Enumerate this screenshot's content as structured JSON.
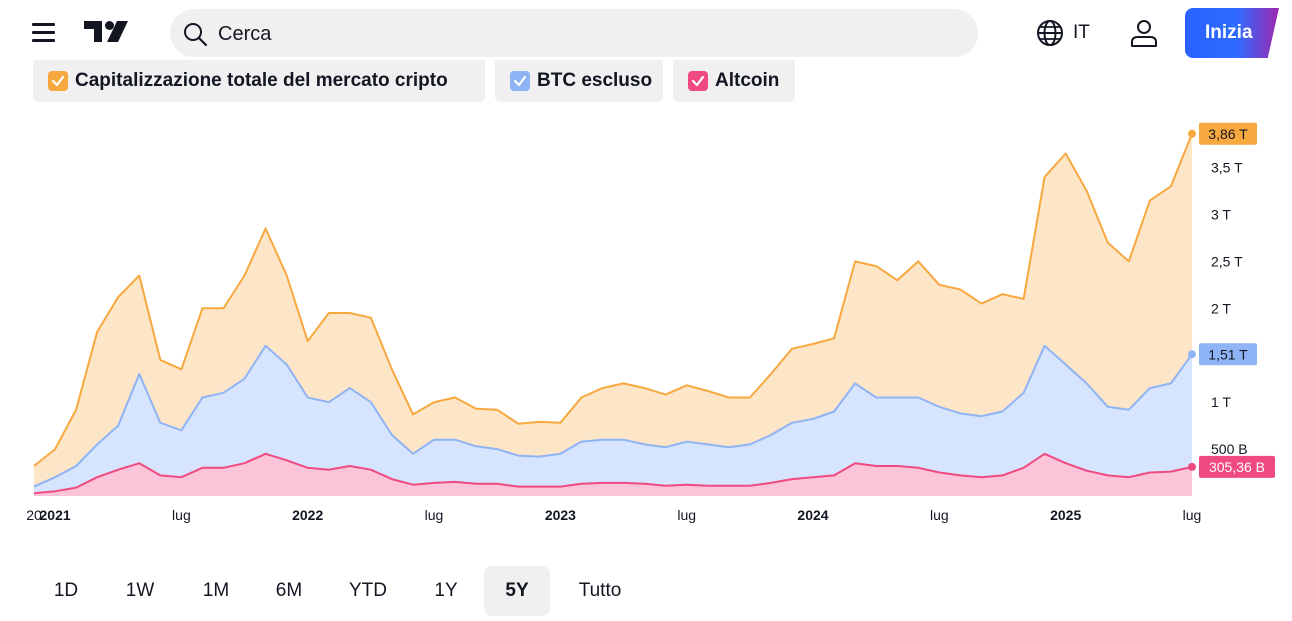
{
  "header": {
    "search": {
      "placeholder": "Cerca",
      "icon": "search-icon"
    },
    "language": {
      "label": "IT",
      "icon": "globe-icon"
    },
    "user_icon": "user-icon",
    "start_label": "Inizia"
  },
  "legend": [
    {
      "label": "Capitalizzazione totale del mercato cripto",
      "color": "#f7a83f"
    },
    {
      "label": "BTC escluso",
      "color": "#8fb4f5"
    },
    {
      "label": "Altcoin",
      "color": "#ef4a81"
    }
  ],
  "ranges": {
    "items": [
      "1D",
      "1W",
      "1M",
      "6M",
      "YTD",
      "1Y",
      "5Y",
      "Tutto"
    ],
    "active": "5Y"
  },
  "chart_data": {
    "type": "area",
    "x_range": [
      "2020-12",
      "2025-07"
    ],
    "x_ticks": [
      {
        "label": "20",
        "date": "2020-12",
        "bold": false
      },
      {
        "label": "2021",
        "date": "2021-01",
        "bold": true
      },
      {
        "label": "lug",
        "date": "2021-07",
        "bold": false
      },
      {
        "label": "2022",
        "date": "2022-01",
        "bold": true
      },
      {
        "label": "lug",
        "date": "2022-07",
        "bold": false
      },
      {
        "label": "2023",
        "date": "2023-01",
        "bold": true
      },
      {
        "label": "lug",
        "date": "2023-07",
        "bold": false
      },
      {
        "label": "2024",
        "date": "2024-01",
        "bold": true
      },
      {
        "label": "lug",
        "date": "2024-07",
        "bold": false
      },
      {
        "label": "2025",
        "date": "2025-01",
        "bold": true
      },
      {
        "label": "lug",
        "date": "2025-07",
        "bold": false
      }
    ],
    "y_unit": "T",
    "y_range": [
      0,
      3.9
    ],
    "y_ticks": [
      {
        "label": "500 B",
        "value": 0.5
      },
      {
        "label": "1 T",
        "value": 1
      },
      {
        "label": "1,5 T",
        "value": 1.5
      },
      {
        "label": "2 T",
        "value": 2
      },
      {
        "label": "2,5 T",
        "value": 2.5
      },
      {
        "label": "3 T",
        "value": 3
      },
      {
        "label": "3,5 T",
        "value": 3.5
      }
    ],
    "series": [
      {
        "name": "Capitalizzazione totale del mercato cripto",
        "line_color": "#f7a83f",
        "fill_color": "#fde5c8",
        "last_label": "3,86 T",
        "points": [
          [
            "2020-12",
            0.32
          ],
          [
            "2021-01",
            0.5
          ],
          [
            "2021-02",
            0.92
          ],
          [
            "2021-03",
            1.75
          ],
          [
            "2021-04",
            2.12
          ],
          [
            "2021-05",
            2.35
          ],
          [
            "2021-06",
            1.45
          ],
          [
            "2021-07",
            1.35
          ],
          [
            "2021-08",
            2.0
          ],
          [
            "2021-09",
            2.0
          ],
          [
            "2021-10",
            2.35
          ],
          [
            "2021-11",
            2.85
          ],
          [
            "2021-12",
            2.35
          ],
          [
            "2022-01",
            1.65
          ],
          [
            "2022-02",
            1.95
          ],
          [
            "2022-03",
            1.95
          ],
          [
            "2022-04",
            1.9
          ],
          [
            "2022-05",
            1.35
          ],
          [
            "2022-06",
            0.87
          ],
          [
            "2022-07",
            1.0
          ],
          [
            "2022-08",
            1.05
          ],
          [
            "2022-09",
            0.93
          ],
          [
            "2022-10",
            0.92
          ],
          [
            "2022-11",
            0.77
          ],
          [
            "2022-12",
            0.79
          ],
          [
            "2023-01",
            0.78
          ],
          [
            "2023-02",
            1.05
          ],
          [
            "2023-03",
            1.15
          ],
          [
            "2023-04",
            1.2
          ],
          [
            "2023-05",
            1.15
          ],
          [
            "2023-06",
            1.08
          ],
          [
            "2023-07",
            1.18
          ],
          [
            "2023-08",
            1.12
          ],
          [
            "2023-09",
            1.05
          ],
          [
            "2023-10",
            1.05
          ],
          [
            "2023-11",
            1.3
          ],
          [
            "2023-12",
            1.57
          ],
          [
            "2024-01",
            1.62
          ],
          [
            "2024-02",
            1.68
          ],
          [
            "2024-03",
            2.5
          ],
          [
            "2024-04",
            2.45
          ],
          [
            "2024-05",
            2.3
          ],
          [
            "2024-06",
            2.5
          ],
          [
            "2024-07",
            2.25
          ],
          [
            "2024-08",
            2.2
          ],
          [
            "2024-09",
            2.05
          ],
          [
            "2024-10",
            2.15
          ],
          [
            "2024-11",
            2.1
          ],
          [
            "2024-12",
            3.4
          ],
          [
            "2025-01",
            3.65
          ],
          [
            "2025-02",
            3.25
          ],
          [
            "2025-03",
            2.7
          ],
          [
            "2025-04",
            2.5
          ],
          [
            "2025-05",
            3.15
          ],
          [
            "2025-06",
            3.3
          ],
          [
            "2025-07",
            3.86
          ]
        ]
      },
      {
        "name": "BTC escluso",
        "line_color": "#8fb4f5",
        "fill_color": "#d6e4fd",
        "last_label": "1,51 T",
        "points": [
          [
            "2020-12",
            0.1
          ],
          [
            "2021-01",
            0.2
          ],
          [
            "2021-02",
            0.32
          ],
          [
            "2021-03",
            0.55
          ],
          [
            "2021-04",
            0.75
          ],
          [
            "2021-05",
            1.3
          ],
          [
            "2021-06",
            0.78
          ],
          [
            "2021-07",
            0.7
          ],
          [
            "2021-08",
            1.05
          ],
          [
            "2021-09",
            1.1
          ],
          [
            "2021-10",
            1.25
          ],
          [
            "2021-11",
            1.6
          ],
          [
            "2021-12",
            1.4
          ],
          [
            "2022-01",
            1.05
          ],
          [
            "2022-02",
            1.0
          ],
          [
            "2022-03",
            1.15
          ],
          [
            "2022-04",
            1.0
          ],
          [
            "2022-05",
            0.65
          ],
          [
            "2022-06",
            0.45
          ],
          [
            "2022-07",
            0.6
          ],
          [
            "2022-08",
            0.6
          ],
          [
            "2022-09",
            0.53
          ],
          [
            "2022-10",
            0.5
          ],
          [
            "2022-11",
            0.43
          ],
          [
            "2022-12",
            0.42
          ],
          [
            "2023-01",
            0.45
          ],
          [
            "2023-02",
            0.58
          ],
          [
            "2023-03",
            0.6
          ],
          [
            "2023-04",
            0.6
          ],
          [
            "2023-05",
            0.55
          ],
          [
            "2023-06",
            0.52
          ],
          [
            "2023-07",
            0.58
          ],
          [
            "2023-08",
            0.55
          ],
          [
            "2023-09",
            0.52
          ],
          [
            "2023-10",
            0.55
          ],
          [
            "2023-11",
            0.65
          ],
          [
            "2023-12",
            0.78
          ],
          [
            "2024-01",
            0.82
          ],
          [
            "2024-02",
            0.9
          ],
          [
            "2024-03",
            1.2
          ],
          [
            "2024-04",
            1.05
          ],
          [
            "2024-05",
            1.05
          ],
          [
            "2024-06",
            1.05
          ],
          [
            "2024-07",
            0.95
          ],
          [
            "2024-08",
            0.88
          ],
          [
            "2024-09",
            0.85
          ],
          [
            "2024-10",
            0.9
          ],
          [
            "2024-11",
            1.1
          ],
          [
            "2024-12",
            1.6
          ],
          [
            "2025-01",
            1.4
          ],
          [
            "2025-02",
            1.2
          ],
          [
            "2025-03",
            0.95
          ],
          [
            "2025-04",
            0.92
          ],
          [
            "2025-05",
            1.15
          ],
          [
            "2025-06",
            1.2
          ],
          [
            "2025-07",
            1.51
          ]
        ]
      },
      {
        "name": "Altcoin",
        "line_color": "#ef4a81",
        "fill_color": "#fcc4d8",
        "last_label": "305,36 B",
        "points": [
          [
            "2020-12",
            0.03
          ],
          [
            "2021-01",
            0.05
          ],
          [
            "2021-02",
            0.09
          ],
          [
            "2021-03",
            0.2
          ],
          [
            "2021-04",
            0.28
          ],
          [
            "2021-05",
            0.35
          ],
          [
            "2021-06",
            0.22
          ],
          [
            "2021-07",
            0.2
          ],
          [
            "2021-08",
            0.3
          ],
          [
            "2021-09",
            0.3
          ],
          [
            "2021-10",
            0.35
          ],
          [
            "2021-11",
            0.45
          ],
          [
            "2021-12",
            0.38
          ],
          [
            "2022-01",
            0.3
          ],
          [
            "2022-02",
            0.28
          ],
          [
            "2022-03",
            0.32
          ],
          [
            "2022-04",
            0.28
          ],
          [
            "2022-05",
            0.18
          ],
          [
            "2022-06",
            0.12
          ],
          [
            "2022-07",
            0.14
          ],
          [
            "2022-08",
            0.15
          ],
          [
            "2022-09",
            0.13
          ],
          [
            "2022-10",
            0.13
          ],
          [
            "2022-11",
            0.1
          ],
          [
            "2022-12",
            0.1
          ],
          [
            "2023-01",
            0.1
          ],
          [
            "2023-02",
            0.13
          ],
          [
            "2023-03",
            0.14
          ],
          [
            "2023-04",
            0.14
          ],
          [
            "2023-05",
            0.13
          ],
          [
            "2023-06",
            0.11
          ],
          [
            "2023-07",
            0.12
          ],
          [
            "2023-08",
            0.11
          ],
          [
            "2023-09",
            0.11
          ],
          [
            "2023-10",
            0.11
          ],
          [
            "2023-11",
            0.14
          ],
          [
            "2023-12",
            0.18
          ],
          [
            "2024-01",
            0.2
          ],
          [
            "2024-02",
            0.22
          ],
          [
            "2024-03",
            0.35
          ],
          [
            "2024-04",
            0.32
          ],
          [
            "2024-05",
            0.32
          ],
          [
            "2024-06",
            0.3
          ],
          [
            "2024-07",
            0.25
          ],
          [
            "2024-08",
            0.22
          ],
          [
            "2024-09",
            0.2
          ],
          [
            "2024-10",
            0.22
          ],
          [
            "2024-11",
            0.3
          ],
          [
            "2024-12",
            0.45
          ],
          [
            "2025-01",
            0.35
          ],
          [
            "2025-02",
            0.27
          ],
          [
            "2025-03",
            0.22
          ],
          [
            "2025-04",
            0.2
          ],
          [
            "2025-05",
            0.25
          ],
          [
            "2025-06",
            0.26
          ],
          [
            "2025-07",
            0.31
          ]
        ]
      }
    ]
  }
}
